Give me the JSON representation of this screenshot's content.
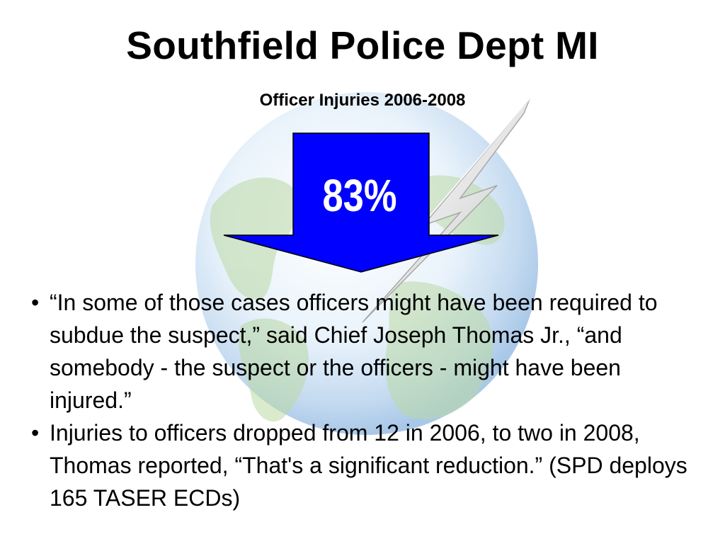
{
  "slide": {
    "title": "Southfield Police Dept MI",
    "subtitle": "Officer Injuries 2006-2008",
    "arrow": {
      "label": "83%",
      "direction": "down",
      "fill_color": "#0000ff"
    },
    "background": {
      "icon": "globe-with-lightning-icon"
    },
    "bullet_symbol": "•",
    "bullets": [
      {
        "text": "“In some of those cases officers might have been required to subdue the suspect,” said Chief Joseph Thomas Jr., “and somebody - the suspect or the officers - might have been injured.”"
      },
      {
        "text": "Injuries to officers dropped from 12 in 2006, to two in 2008, Thomas reported, “That's a significant reduction.”   (SPD deploys 165 TASER ECDs)"
      }
    ]
  }
}
